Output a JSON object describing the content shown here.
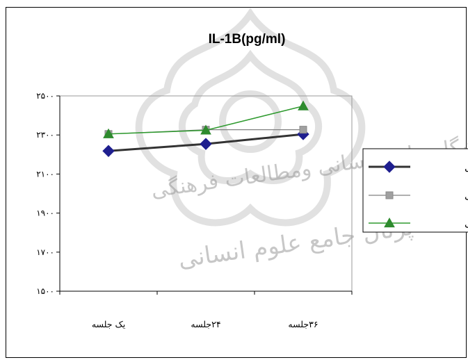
{
  "watermark": {
    "line1": "پژوهشگاه علوم انسانی ومطالعات فرهنگی",
    "line2": "پرتال جامع علوم انسانی"
  },
  "chart_data": {
    "type": "line",
    "title": "IL-1B(pg/ml)",
    "xlabel": "",
    "ylabel": "",
    "categories": [
      "یک جلسه",
      "۲۴جلسه",
      "۳۶جلسه"
    ],
    "ylim": [
      1500,
      2500
    ],
    "yticks": [
      1500,
      1700,
      1900,
      2100,
      2300,
      2500
    ],
    "ytick_labels": [
      "۱۵۰۰",
      "۱۷۰۰",
      "۱۹۰۰",
      "۲۱۰۰",
      "۲۳۰۰",
      "۲۵۰۰"
    ],
    "grid": false,
    "legend_position": "right",
    "series": [
      {
        "name": "کنترل",
        "values": [
          2218,
          2254,
          2304
        ],
        "color": "#333333",
        "marker_color": "#1f1f8f",
        "marker": "diamond"
      },
      {
        "name": "بی تمرینی",
        "values": [
          2305,
          2327,
          2327
        ],
        "color": "#808080",
        "marker_color": "#a0a0a0",
        "marker": "square"
      },
      {
        "name": "سرعتی",
        "values": [
          2305,
          2324,
          2448
        ],
        "color": "#2e9a2e",
        "marker_color": "#2e8b2e",
        "marker": "triangle"
      }
    ]
  }
}
